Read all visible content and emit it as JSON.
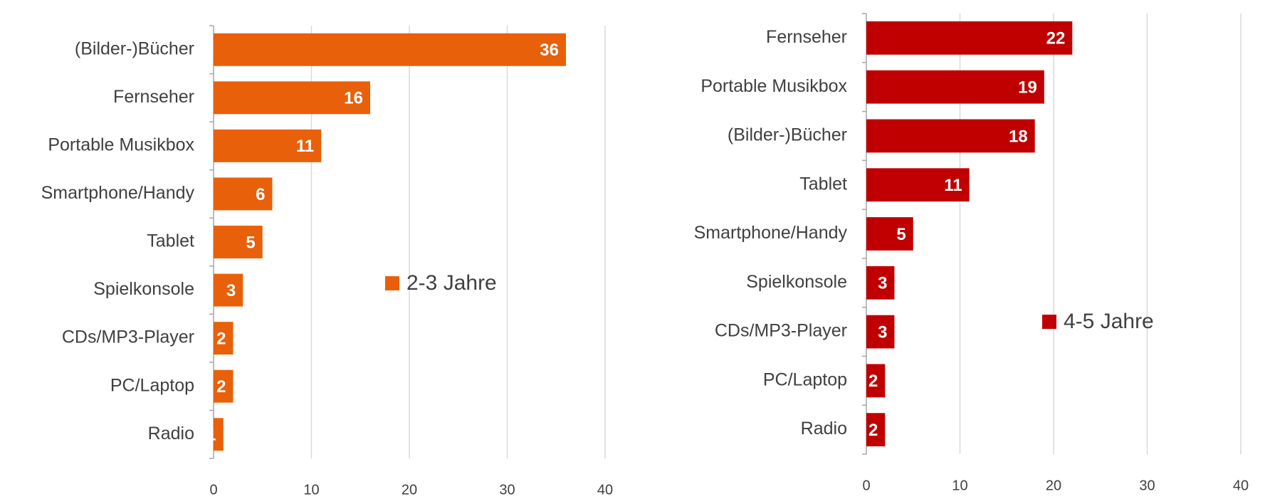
{
  "chart_data": [
    {
      "type": "bar",
      "orientation": "horizontal",
      "categories": [
        "(Bilder-)Bücher",
        "Fernseher",
        "Portable Musikbox",
        "Smartphone/Handy",
        "Tablet",
        "Spielkonsole",
        "CDs/MP3-Player",
        "PC/Laptop",
        "Radio"
      ],
      "series": [
        {
          "name": "2-3 Jahre",
          "color": "#e8600a",
          "values": [
            36,
            16,
            11,
            6,
            5,
            3,
            2,
            2,
            1
          ]
        }
      ],
      "xlim": [
        0,
        40
      ],
      "xticks": [
        0,
        10,
        20,
        30,
        40
      ],
      "grid": true
    },
    {
      "type": "bar",
      "orientation": "horizontal",
      "categories": [
        "Fernseher",
        "Portable Musikbox",
        "(Bilder-)Bücher",
        "Tablet",
        "Smartphone/Handy",
        "Spielkonsole",
        "CDs/MP3-Player",
        "PC/Laptop",
        "Radio"
      ],
      "series": [
        {
          "name": "4-5 Jahre",
          "color": "#c00000",
          "values": [
            22,
            19,
            18,
            11,
            5,
            3,
            3,
            2,
            2
          ]
        }
      ],
      "xlim": [
        0,
        40
      ],
      "xticks": [
        0,
        10,
        20,
        30,
        40
      ],
      "grid": true
    }
  ]
}
